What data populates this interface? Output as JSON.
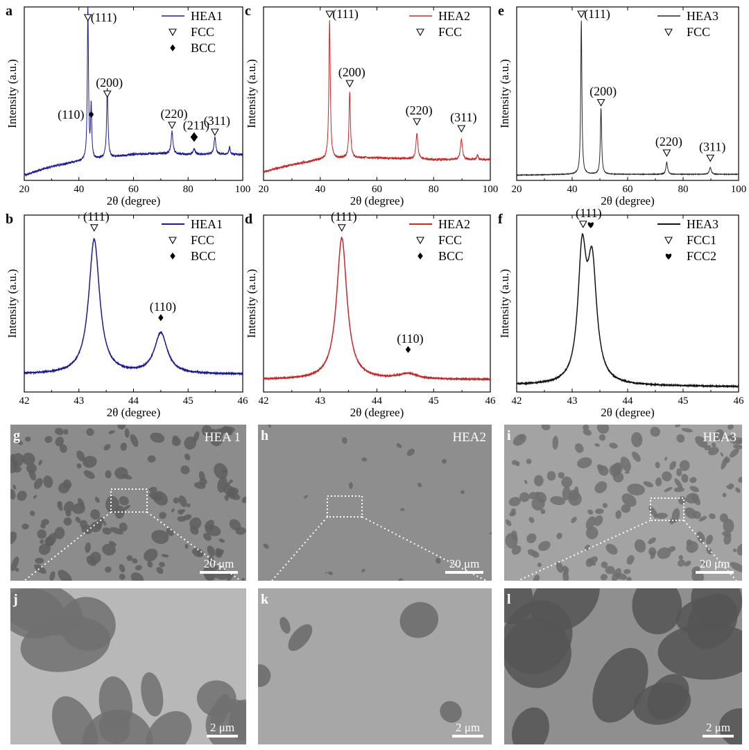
{
  "chart_data": [
    {
      "panel": "a",
      "type": "line",
      "xlabel": "2θ (degree)",
      "ylabel": "Intensity (a.u.)",
      "xlim": [
        20,
        100
      ],
      "xticks": [
        20,
        40,
        60,
        80,
        100
      ],
      "ylim": [
        0,
        100
      ],
      "baseline": [
        [
          20,
          3
        ],
        [
          30,
          8
        ],
        [
          40,
          11
        ],
        [
          50,
          13
        ],
        [
          60,
          15
        ],
        [
          70,
          15.5
        ],
        [
          80,
          15
        ],
        [
          90,
          15
        ],
        [
          100,
          15
        ]
      ],
      "peaks": [
        {
          "x": 43.3,
          "h": 88,
          "w": 0.25
        },
        {
          "x": 44.5,
          "h": 30,
          "w": 0.25
        },
        {
          "x": 50.4,
          "h": 40,
          "w": 0.3
        },
        {
          "x": 74.1,
          "h": 13,
          "w": 0.4
        },
        {
          "x": 82.2,
          "h": 3,
          "w": 0.5
        },
        {
          "x": 89.8,
          "h": 10,
          "w": 0.4
        },
        {
          "x": 95.2,
          "h": 4,
          "w": 0.3
        }
      ],
      "color": "#1a1a8c",
      "series": [
        {
          "name": "HEA1"
        }
      ],
      "legend": [
        "HEA1",
        "FCC",
        "BCC"
      ],
      "annotations": [
        {
          "text": "(111)",
          "x": 43.3,
          "y": 94,
          "marker": "FCC"
        },
        {
          "text": "(200)",
          "x": 50.4,
          "y": 50,
          "marker": "FCC"
        },
        {
          "text": "(110)",
          "x": 44.5,
          "y": 38,
          "marker": "BCC",
          "side": "left"
        },
        {
          "text": "(220)",
          "x": 74.1,
          "y": 32,
          "marker": "FCC"
        },
        {
          "text": "(211)",
          "x": 82.2,
          "y": 25,
          "marker": "BCC"
        },
        {
          "text": "(311)",
          "x": 89.8,
          "y": 28,
          "marker": "FCC"
        }
      ]
    },
    {
      "panel": "c",
      "type": "line",
      "xlabel": "2θ (degree)",
      "ylabel": "Intensity (a.u.)",
      "xlim": [
        20,
        100
      ],
      "xticks": [
        20,
        40,
        60,
        80,
        100
      ],
      "ylim": [
        0,
        100
      ],
      "baseline": [
        [
          20,
          5
        ],
        [
          30,
          9
        ],
        [
          40,
          12
        ],
        [
          50,
          13
        ],
        [
          60,
          13
        ],
        [
          70,
          12.5
        ],
        [
          80,
          12
        ],
        [
          90,
          12
        ],
        [
          100,
          12
        ]
      ],
      "peaks": [
        {
          "x": 43.3,
          "h": 80,
          "w": 0.3
        },
        {
          "x": 50.4,
          "h": 38,
          "w": 0.3
        },
        {
          "x": 74.1,
          "h": 15,
          "w": 0.4
        },
        {
          "x": 89.8,
          "h": 12,
          "w": 0.4
        },
        {
          "x": 95.5,
          "h": 3,
          "w": 0.3
        }
      ],
      "color": "#c0282a",
      "series": [
        {
          "name": "HEA2"
        }
      ],
      "legend": [
        "HEA2",
        "FCC"
      ],
      "annotations": [
        {
          "text": "(111)",
          "x": 43.3,
          "y": 96,
          "marker": "FCC"
        },
        {
          "text": "(200)",
          "x": 50.4,
          "y": 56,
          "marker": "FCC"
        },
        {
          "text": "(220)",
          "x": 74.1,
          "y": 34,
          "marker": "FCC"
        },
        {
          "text": "(311)",
          "x": 89.8,
          "y": 30,
          "marker": "FCC"
        }
      ]
    },
    {
      "panel": "e",
      "type": "line",
      "xlabel": "2θ (degree)",
      "ylabel": "Intensity (a.u.)",
      "xlim": [
        20,
        100
      ],
      "xticks": [
        20,
        40,
        60,
        80,
        100
      ],
      "ylim": [
        0,
        100
      ],
      "baseline": [
        [
          20,
          3
        ],
        [
          40,
          3.5
        ],
        [
          60,
          3.5
        ],
        [
          80,
          3.5
        ],
        [
          100,
          3.5
        ]
      ],
      "peaks": [
        {
          "x": 43.3,
          "h": 89,
          "w": 0.25
        },
        {
          "x": 50.4,
          "h": 38,
          "w": 0.28
        },
        {
          "x": 74.1,
          "h": 7,
          "w": 0.35
        },
        {
          "x": 89.8,
          "h": 4,
          "w": 0.4
        }
      ],
      "color": "#222222",
      "series": [
        {
          "name": "HEA3"
        }
      ],
      "legend": [
        "HEA3",
        "FCC"
      ],
      "annotations": [
        {
          "text": "(111)",
          "x": 43.3,
          "y": 96,
          "marker": "FCC"
        },
        {
          "text": "(200)",
          "x": 50.4,
          "y": 45,
          "marker": "FCC"
        },
        {
          "text": "(220)",
          "x": 74.1,
          "y": 16,
          "marker": "FCC"
        },
        {
          "text": "(311)",
          "x": 89.8,
          "y": 13,
          "marker": "FCC"
        }
      ]
    },
    {
      "panel": "b",
      "type": "line",
      "xlabel": "2θ (degree)",
      "ylabel": "Intensity (a.u.)",
      "xlim": [
        42,
        46
      ],
      "xticks": [
        42,
        43,
        44,
        45,
        46
      ],
      "ylim": [
        0,
        100
      ],
      "baseline": [
        [
          42,
          10
        ],
        [
          46,
          10
        ]
      ],
      "peaks": [
        {
          "x": 43.28,
          "h": 76,
          "w": 0.12
        },
        {
          "x": 44.5,
          "h": 23,
          "w": 0.14
        }
      ],
      "color": "#1a1a8c",
      "series": [
        {
          "name": "HEA1"
        }
      ],
      "legend": [
        "HEA1",
        "FCC",
        "BCC"
      ],
      "annotations": [
        {
          "text": "(111)",
          "x": 43.28,
          "y": 93,
          "marker": "FCC"
        },
        {
          "text": "(110)",
          "x": 44.5,
          "y": 42,
          "marker": "BCC"
        }
      ]
    },
    {
      "panel": "d",
      "type": "line",
      "xlabel": "2θ (degree)",
      "ylabel": "Intensity (a.u.)",
      "xlim": [
        42,
        46
      ],
      "xticks": [
        42,
        43,
        44,
        45,
        46
      ],
      "ylim": [
        0,
        100
      ],
      "baseline": [
        [
          42,
          7
        ],
        [
          46,
          7
        ]
      ],
      "peaks": [
        {
          "x": 43.38,
          "h": 80,
          "w": 0.11
        },
        {
          "x": 44.55,
          "h": 3,
          "w": 0.2
        }
      ],
      "color": "#c0282a",
      "series": [
        {
          "name": "HEA2"
        }
      ],
      "legend": [
        "HEA2",
        "FCC",
        "BCC"
      ],
      "annotations": [
        {
          "text": "(111)",
          "x": 43.38,
          "y": 93,
          "marker": "FCC"
        },
        {
          "text": "(110)",
          "x": 44.55,
          "y": 24,
          "marker": "BCC"
        }
      ]
    },
    {
      "panel": "f",
      "type": "line",
      "xlabel": "2θ (degree)",
      "ylabel": "Intensity (a.u.)",
      "xlim": [
        42,
        46
      ],
      "xticks": [
        42,
        43,
        44,
        45,
        46
      ],
      "ylim": [
        0,
        100
      ],
      "baseline": [
        [
          42,
          4
        ],
        [
          46,
          3
        ]
      ],
      "peaks": [
        {
          "x": 43.18,
          "h": 70,
          "w": 0.09
        },
        {
          "x": 43.36,
          "h": 64,
          "w": 0.1
        }
      ],
      "color": "#111111",
      "series": [
        {
          "name": "HEA3"
        }
      ],
      "legend": [
        "HEA3",
        "FCC1",
        "FCC2"
      ],
      "annotations": [
        {
          "text": "(111)",
          "x": 43.26,
          "y": 95,
          "marker": "FCC1_FCC2"
        }
      ]
    }
  ],
  "micrographs": [
    {
      "panel": "g",
      "name": "HEA 1",
      "scale": "20 μm",
      "tone": "#8c8c8c",
      "dark": "#5e5e5e"
    },
    {
      "panel": "h",
      "name": "HEA2",
      "scale": "20 μm",
      "tone": "#8e8e8e",
      "dark": "#666666"
    },
    {
      "panel": "i",
      "name": "HEA3",
      "scale": "20 μm",
      "tone": "#a3a3a3",
      "dark": "#6f6f6f"
    },
    {
      "panel": "j",
      "name": "",
      "scale": "2 μm",
      "tone": "#b8b8b8",
      "dark": "#707070"
    },
    {
      "panel": "k",
      "name": "",
      "scale": "2 μm",
      "tone": "#a7a7a7",
      "dark": "#6a6a6a"
    },
    {
      "panel": "l",
      "name": "",
      "scale": "2 μm",
      "tone": "#8f8f8f",
      "dark": "#555555"
    }
  ]
}
